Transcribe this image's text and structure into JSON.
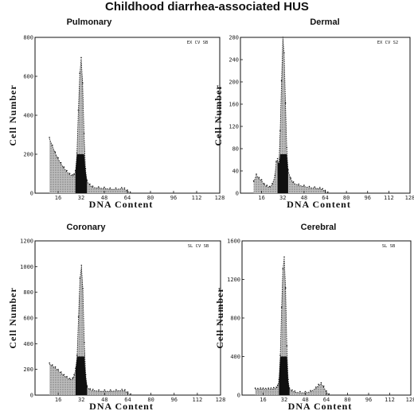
{
  "figure": {
    "title": "Childhood diarrhea-associated HUS"
  },
  "colors": {
    "fill_dark": "#101010",
    "fill_mid": "#6a6a6a",
    "fill_light": "#b3b3b3",
    "axis": "#111111"
  },
  "chart_data": [
    {
      "type": "area",
      "title": "Pulmonary",
      "annotation": "EX CV SB",
      "xlabel": "DNA Content",
      "ylabel": "Cell Number",
      "xlim": [
        0,
        128
      ],
      "ylim": [
        0,
        800
      ],
      "xticks": [
        16,
        32,
        48,
        64,
        80,
        96,
        112,
        128
      ],
      "yticks": [
        0,
        200,
        400,
        600,
        800
      ],
      "x": [
        10,
        12,
        14,
        16,
        18,
        20,
        22,
        24,
        26,
        27,
        28,
        29,
        30,
        31,
        32,
        33,
        34,
        35,
        36,
        38,
        40,
        44,
        48,
        52,
        56,
        60,
        62,
        64,
        66
      ],
      "values": [
        280,
        240,
        205,
        175,
        150,
        128,
        110,
        95,
        88,
        92,
        110,
        200,
        420,
        610,
        690,
        560,
        300,
        120,
        60,
        40,
        30,
        26,
        24,
        20,
        20,
        22,
        20,
        10,
        0
      ]
    },
    {
      "type": "area",
      "title": "Dermal",
      "annotation": "EX CV S2",
      "xlabel": "DNA Content",
      "ylabel": "Cell Number",
      "xlim": [
        0,
        128
      ],
      "ylim": [
        0,
        280
      ],
      "xticks": [
        16,
        32,
        48,
        64,
        80,
        96,
        112,
        128
      ],
      "yticks": [
        0,
        40,
        80,
        120,
        160,
        200,
        240,
        280
      ],
      "x": [
        10,
        12,
        14,
        16,
        18,
        20,
        22,
        24,
        26,
        27,
        28,
        29,
        30,
        31,
        32,
        33,
        34,
        35,
        36,
        38,
        40,
        44,
        48,
        52,
        56,
        60,
        62,
        64,
        66
      ],
      "values": [
        20,
        32,
        26,
        22,
        15,
        12,
        10,
        15,
        30,
        55,
        60,
        50,
        110,
        200,
        278,
        250,
        160,
        80,
        40,
        25,
        18,
        14,
        12,
        10,
        9,
        8,
        6,
        3,
        0
      ]
    },
    {
      "type": "area",
      "title": "Coronary",
      "annotation": "SL CV SB",
      "xlabel": "DNA Content",
      "ylabel": "Cell Number",
      "xlim": [
        0,
        128
      ],
      "ylim": [
        0,
        1200
      ],
      "xticks": [
        16,
        32,
        48,
        64,
        80,
        96,
        112,
        128
      ],
      "yticks": [
        0,
        200,
        400,
        600,
        800,
        1000,
        1200
      ],
      "x": [
        10,
        12,
        14,
        16,
        18,
        20,
        22,
        24,
        26,
        27,
        28,
        29,
        30,
        31,
        32,
        33,
        34,
        35,
        36,
        38,
        40,
        44,
        48,
        52,
        56,
        60,
        62,
        64,
        66
      ],
      "values": [
        240,
        225,
        210,
        190,
        170,
        150,
        135,
        120,
        125,
        150,
        200,
        300,
        600,
        900,
        1000,
        820,
        400,
        150,
        60,
        40,
        35,
        30,
        30,
        30,
        32,
        35,
        32,
        15,
        0
      ]
    },
    {
      "type": "area",
      "title": "Cerebral",
      "annotation": "SL SB",
      "xlabel": "DNA Content",
      "ylabel": "Cell Number",
      "xlim": [
        0,
        128
      ],
      "ylim": [
        0,
        1600
      ],
      "xticks": [
        16,
        32,
        48,
        64,
        80,
        96,
        112,
        128
      ],
      "yticks": [
        0,
        400,
        800,
        1200,
        1600
      ],
      "x": [
        10,
        12,
        14,
        16,
        18,
        20,
        22,
        24,
        26,
        27,
        28,
        29,
        30,
        31,
        32,
        33,
        34,
        35,
        36,
        38,
        40,
        44,
        48,
        52,
        56,
        58,
        60,
        62,
        64,
        66
      ],
      "values": [
        60,
        58,
        62,
        60,
        58,
        60,
        62,
        65,
        70,
        90,
        150,
        400,
        900,
        1300,
        1420,
        1100,
        500,
        150,
        60,
        40,
        30,
        25,
        25,
        35,
        70,
        100,
        115,
        80,
        30,
        0
      ]
    }
  ]
}
